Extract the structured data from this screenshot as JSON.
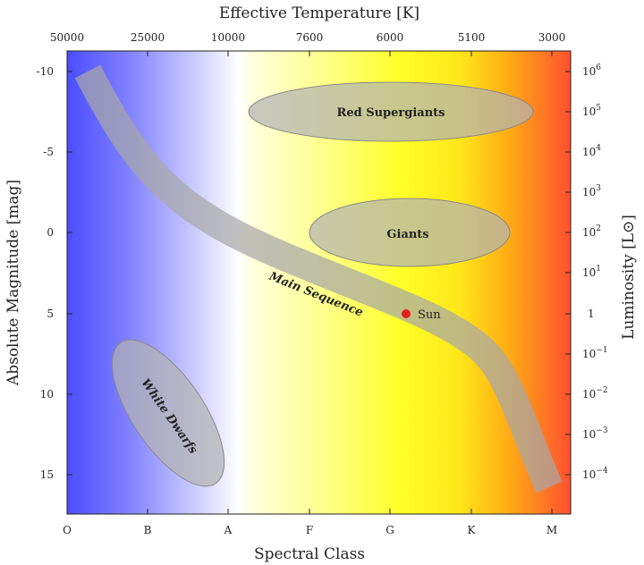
{
  "diagram": {
    "title_top": "Effective Temperature [K]",
    "xlabel": "Spectral Class",
    "ylabel_left": "Absolute Magnitude [mag]",
    "ylabel_right": "Luminosity [L⊙]",
    "top_ticks": [
      "50000",
      "25000",
      "10000",
      "7600",
      "6000",
      "5100",
      "3000"
    ],
    "bottom_ticks": [
      "O",
      "B",
      "A",
      "F",
      "G",
      "K",
      "M"
    ],
    "left_ticks": [
      "-10",
      "-5",
      "0",
      "5",
      "10",
      "15"
    ],
    "right_ticks": [
      {
        "base": "10",
        "exp": "6"
      },
      {
        "base": "10",
        "exp": "5"
      },
      {
        "base": "10",
        "exp": "4"
      },
      {
        "base": "10",
        "exp": "3"
      },
      {
        "base": "10",
        "exp": "2"
      },
      {
        "base": "10",
        "exp": "1"
      },
      {
        "base": "1",
        "exp": ""
      },
      {
        "base": "10",
        "exp": "−1"
      },
      {
        "base": "10",
        "exp": "−2"
      },
      {
        "base": "10",
        "exp": "−3"
      },
      {
        "base": "10",
        "exp": "−4"
      }
    ],
    "regions": {
      "red_supergiants": "Red Supergiants",
      "giants": "Giants",
      "main_sequence": "Main Sequence",
      "white_dwarfs": "White Dwarfs"
    },
    "sun": {
      "label": "Sun",
      "color": "#e41e1e"
    },
    "background_gradient": [
      "#4b4dff",
      "#ffffff",
      "#ffff40",
      "#ffd200",
      "#ff5030"
    ],
    "region_fill": "#b3b3b3"
  }
}
